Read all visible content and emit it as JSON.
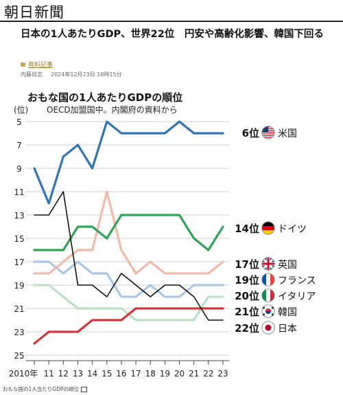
{
  "site": {
    "logo": "朝日新聞"
  },
  "article": {
    "headline": "日本の1人あたりGDP、世界22位　円安や高齢化影響、韓国下回る",
    "premium_label": "有料記事",
    "author": "内藤尚志",
    "timestamp": "2024年12月23日 18時15分"
  },
  "figure": {
    "caption": "おもな国の1人当たりGDPの順位"
  },
  "chart_data": {
    "type": "line",
    "title": "おもな国の1人あたりGDPの順位",
    "subtitle": "OECD加盟国中。内閣府の資料から",
    "ylabel": "(位)",
    "xlabel": "",
    "y_inverted": true,
    "ylim": [
      25,
      5
    ],
    "yticks": [
      5,
      7,
      9,
      11,
      13,
      15,
      17,
      19,
      21,
      23,
      25
    ],
    "x": [
      2010,
      2011,
      2012,
      2013,
      2014,
      2015,
      2016,
      2017,
      2018,
      2019,
      2020,
      2021,
      2022,
      2023
    ],
    "xtick_labels": [
      "2010年",
      "11",
      "12",
      "13",
      "14",
      "15",
      "16",
      "17",
      "18",
      "19",
      "20",
      "21",
      "22",
      "23"
    ],
    "grid": true,
    "series": [
      {
        "name": "米国",
        "rank_label": "6位",
        "color": "#2e74b5",
        "flag": "us-flag",
        "values": [
          9,
          12,
          8,
          7,
          9,
          5,
          6,
          6,
          6,
          6,
          5,
          6,
          6,
          6
        ]
      },
      {
        "name": "ドイツ",
        "rank_label": "14位",
        "color": "#2ea35a",
        "flag": "germany-flag",
        "values": [
          16,
          16,
          16,
          14,
          14,
          15,
          13,
          13,
          13,
          13,
          13,
          15,
          16,
          14
        ]
      },
      {
        "name": "英国",
        "rank_label": "17位",
        "color": "#f2b8a8",
        "flag": "uk-flag",
        "values": [
          18,
          18,
          17,
          16,
          16,
          11,
          16,
          18,
          17,
          18,
          18,
          18,
          18,
          17
        ]
      },
      {
        "name": "フランス",
        "rank_label": "19位",
        "color": "#a9c6e6",
        "flag": "france-flag",
        "values": [
          17,
          17,
          18,
          17,
          18,
          18,
          20,
          20,
          19,
          20,
          20,
          19,
          19,
          19
        ]
      },
      {
        "name": "イタリア",
        "rank_label": "20位",
        "color": "#b9e0c4",
        "flag": "italy-flag",
        "values": [
          19,
          19,
          20,
          21,
          21,
          21,
          21,
          22,
          22,
          22,
          22,
          22,
          20,
          20
        ]
      },
      {
        "name": "韓国",
        "rank_label": "21位",
        "color": "#d6343a",
        "flag": "korea-flag",
        "values": [
          24,
          23,
          23,
          23,
          22,
          22,
          22,
          21,
          21,
          21,
          21,
          21,
          21,
          21
        ]
      },
      {
        "name": "日本",
        "rank_label": "22位",
        "color": "#111111",
        "flag": "japan-flag",
        "values": [
          13,
          13,
          11,
          19,
          19,
          20,
          18,
          19,
          20,
          19,
          19,
          20,
          22,
          22
        ]
      }
    ]
  }
}
